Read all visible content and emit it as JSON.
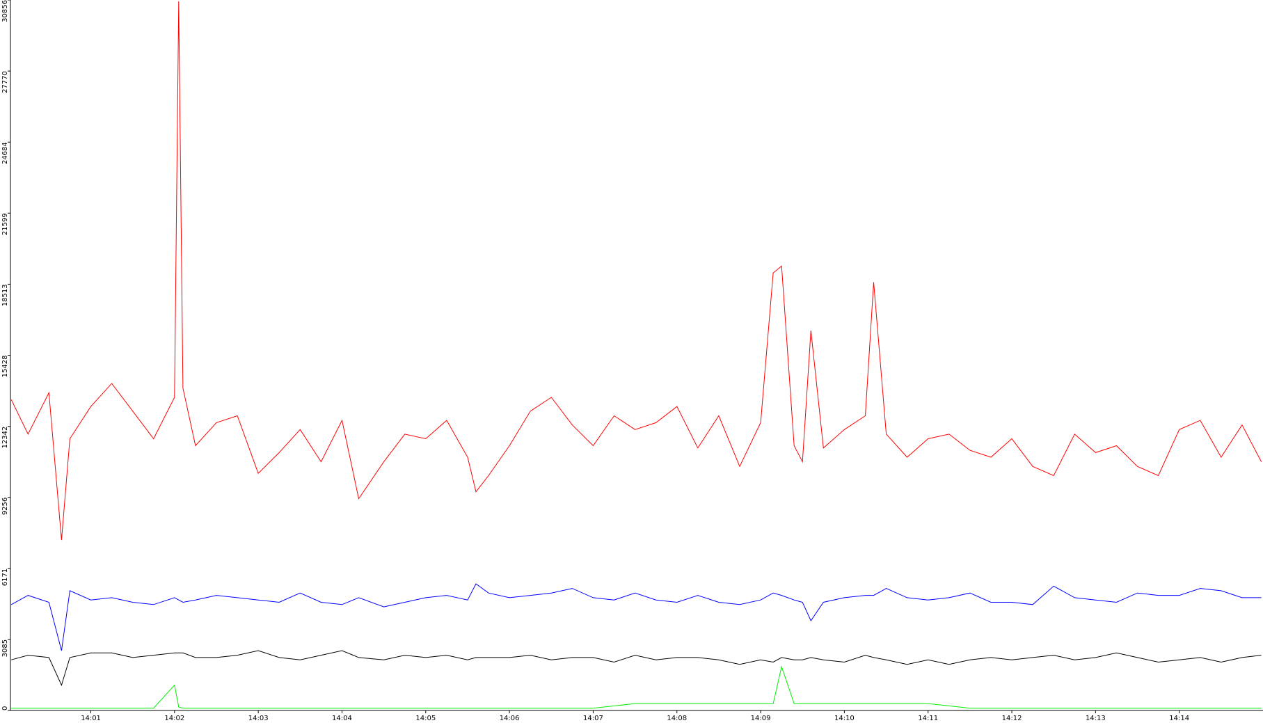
{
  "chart_data": {
    "type": "line",
    "x": [
      0.05,
      0.25,
      0.5,
      0.65,
      0.75,
      1.0,
      1.25,
      1.5,
      1.75,
      2.0,
      2.05,
      2.1,
      2.25,
      2.5,
      2.75,
      3.0,
      3.25,
      3.5,
      3.75,
      4.0,
      4.2,
      4.5,
      4.75,
      5.0,
      5.25,
      5.5,
      5.6,
      5.75,
      6.0,
      6.25,
      6.5,
      6.75,
      7.0,
      7.25,
      7.5,
      7.75,
      8.0,
      8.25,
      8.5,
      8.75,
      9.0,
      9.15,
      9.25,
      9.4,
      9.5,
      9.6,
      9.75,
      10.0,
      10.25,
      10.35,
      10.5,
      10.75,
      11.0,
      11.25,
      11.5,
      11.75,
      12.0,
      12.25,
      12.5,
      12.75,
      13.0,
      13.25,
      13.5,
      13.75,
      14.0,
      14.25,
      14.5,
      14.75,
      14.98
    ],
    "series": [
      {
        "color": "#ff0000",
        "values": [
          13500,
          12000,
          13800,
          7400,
          11800,
          13200,
          14200,
          13000,
          11800,
          13600,
          30800,
          14000,
          11500,
          12500,
          12800,
          10300,
          11200,
          12200,
          10800,
          12600,
          9200,
          10800,
          12000,
          11800,
          12600,
          11000,
          9500,
          10200,
          11500,
          13000,
          13600,
          12400,
          11500,
          12800,
          12200,
          12500,
          13200,
          11400,
          12800,
          10600,
          12500,
          19000,
          19300,
          11500,
          10800,
          16500,
          11400,
          12200,
          12800,
          18600,
          12000,
          11000,
          11800,
          12000,
          11300,
          11000,
          11800,
          10600,
          10200,
          12000,
          11200,
          11500,
          10600,
          10200,
          12200,
          12600,
          11000,
          12400,
          10800
        ]
      },
      {
        "color": "#0000ff",
        "values": [
          4600,
          5000,
          4700,
          2600,
          5200,
          4800,
          4900,
          4700,
          4600,
          4900,
          4800,
          4700,
          4800,
          5000,
          4900,
          4800,
          4700,
          5100,
          4700,
          4600,
          4900,
          4500,
          4700,
          4900,
          5000,
          4800,
          5500,
          5100,
          4900,
          5000,
          5100,
          5300,
          4900,
          4800,
          5100,
          4800,
          4700,
          5000,
          4700,
          4600,
          4800,
          5100,
          5000,
          4800,
          4700,
          3900,
          4700,
          4900,
          5000,
          5000,
          5300,
          4900,
          4800,
          4900,
          5100,
          4700,
          4700,
          4600,
          5400,
          4900,
          4800,
          4700,
          5100,
          5000,
          5000,
          5300,
          5200,
          4900,
          4900
        ]
      },
      {
        "color": "#000000",
        "values": [
          2200,
          2400,
          2300,
          1100,
          2300,
          2500,
          2500,
          2300,
          2400,
          2500,
          2500,
          2500,
          2300,
          2300,
          2400,
          2600,
          2300,
          2200,
          2400,
          2600,
          2300,
          2200,
          2400,
          2300,
          2400,
          2200,
          2300,
          2300,
          2300,
          2400,
          2200,
          2300,
          2300,
          2100,
          2400,
          2200,
          2300,
          2300,
          2200,
          2000,
          2200,
          2100,
          2300,
          2200,
          2200,
          2300,
          2200,
          2100,
          2400,
          2300,
          2200,
          2000,
          2200,
          2000,
          2200,
          2300,
          2200,
          2300,
          2400,
          2200,
          2300,
          2500,
          2300,
          2100,
          2200,
          2300,
          2100,
          2300,
          2400
        ]
      },
      {
        "color": "#00ee00",
        "values": [
          100,
          100,
          100,
          100,
          100,
          100,
          100,
          100,
          100,
          1100,
          150,
          100,
          100,
          100,
          100,
          100,
          100,
          100,
          100,
          100,
          100,
          100,
          100,
          100,
          100,
          100,
          100,
          100,
          100,
          100,
          100,
          100,
          100,
          200,
          300,
          300,
          300,
          300,
          300,
          300,
          300,
          300,
          1900,
          300,
          300,
          300,
          300,
          300,
          300,
          300,
          300,
          300,
          300,
          200,
          100,
          100,
          100,
          100,
          100,
          100,
          100,
          100,
          100,
          100,
          100,
          100,
          100,
          100,
          100
        ]
      }
    ],
    "xlim": [
      0.04,
      15.0
    ],
    "xticks": [
      {
        "value": 1,
        "label": "14:01"
      },
      {
        "value": 2,
        "label": "14:02"
      },
      {
        "value": 3,
        "label": "14:03"
      },
      {
        "value": 4,
        "label": "14:04"
      },
      {
        "value": 5,
        "label": "14:05"
      },
      {
        "value": 6,
        "label": "14:06"
      },
      {
        "value": 7,
        "label": "14:07"
      },
      {
        "value": 8,
        "label": "14:08"
      },
      {
        "value": 9,
        "label": "14:09"
      },
      {
        "value": 10,
        "label": "14:10"
      },
      {
        "value": 11,
        "label": "14:11"
      },
      {
        "value": 12,
        "label": "14:12"
      },
      {
        "value": 13,
        "label": "14:13"
      },
      {
        "value": 14,
        "label": "14:14"
      }
    ],
    "ylim": [
      0,
      30856
    ],
    "yticks": [
      0,
      3085,
      6171,
      9256,
      12342,
      15428,
      18513,
      21599,
      24684,
      27770,
      30856
    ]
  }
}
